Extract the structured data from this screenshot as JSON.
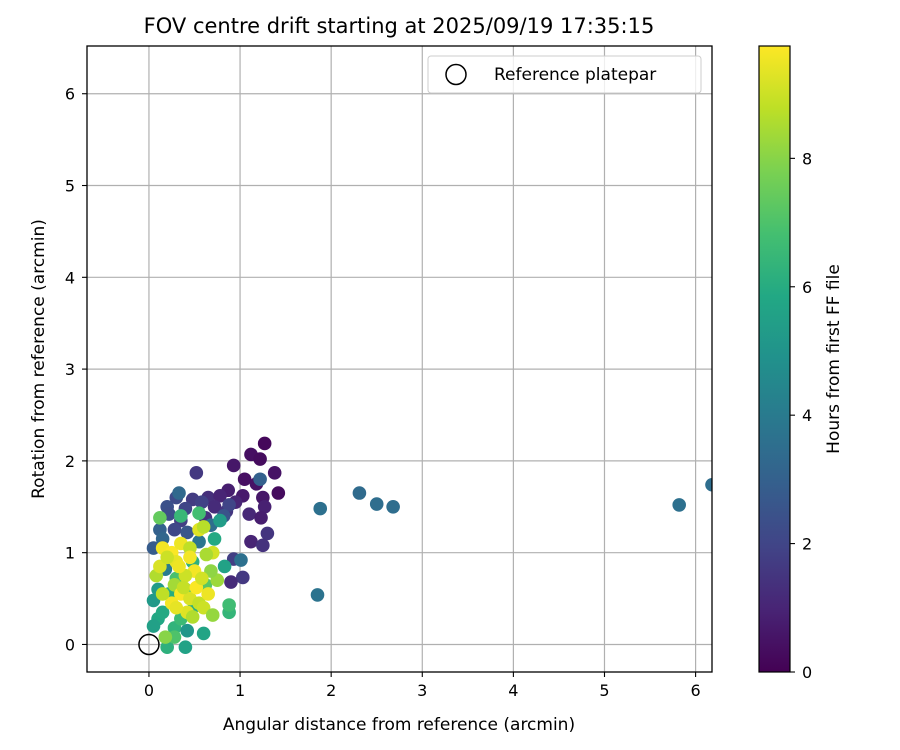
{
  "chart_data": {
    "type": "scatter",
    "title": "FOV centre drift starting at 2025/09/19 17:35:15",
    "xlabel": "Angular distance from reference (arcmin)",
    "ylabel": "Rotation from reference (arcmin)",
    "xlim": [
      -0.68,
      6.18
    ],
    "ylim": [
      -0.3,
      6.52
    ],
    "xticks": [
      "0",
      "1",
      "2",
      "3",
      "4",
      "5",
      "6"
    ],
    "yticks": [
      "0",
      "1",
      "2",
      "3",
      "4",
      "5",
      "6"
    ],
    "grid": true,
    "legend": {
      "position": "top-right",
      "label": "Reference platepar"
    },
    "reference_point": {
      "x": 0,
      "y": 0
    },
    "colorbar": {
      "label": "Hours from first FF file",
      "range": [
        0,
        9.75
      ],
      "ticks": [
        "0",
        "2",
        "4",
        "6",
        "8"
      ],
      "colormap": "viridis"
    },
    "series": [
      {
        "name": "FOV centre drift",
        "points": [
          {
            "x": 1.27,
            "y": 2.19,
            "h": 0.2
          },
          {
            "x": 1.12,
            "y": 2.07,
            "h": 0.4
          },
          {
            "x": 1.22,
            "y": 2.02,
            "h": 0.3
          },
          {
            "x": 1.38,
            "y": 1.87,
            "h": 0.5
          },
          {
            "x": 0.93,
            "y": 1.95,
            "h": 0.6
          },
          {
            "x": 1.05,
            "y": 1.8,
            "h": 0.4
          },
          {
            "x": 1.18,
            "y": 1.75,
            "h": 0.5
          },
          {
            "x": 1.42,
            "y": 1.65,
            "h": 0.3
          },
          {
            "x": 1.25,
            "y": 1.6,
            "h": 0.6
          },
          {
            "x": 1.03,
            "y": 1.62,
            "h": 0.7
          },
          {
            "x": 0.87,
            "y": 1.68,
            "h": 0.8
          },
          {
            "x": 0.95,
            "y": 1.55,
            "h": 1.0
          },
          {
            "x": 1.27,
            "y": 1.5,
            "h": 0.9
          },
          {
            "x": 1.1,
            "y": 1.42,
            "h": 1.1
          },
          {
            "x": 1.23,
            "y": 1.38,
            "h": 0.8
          },
          {
            "x": 1.3,
            "y": 1.21,
            "h": 1.5
          },
          {
            "x": 1.12,
            "y": 1.12,
            "h": 1.0
          },
          {
            "x": 1.25,
            "y": 1.08,
            "h": 1.4
          },
          {
            "x": 0.93,
            "y": 0.93,
            "h": 1.8
          },
          {
            "x": 1.03,
            "y": 0.73,
            "h": 1.6
          },
          {
            "x": 0.9,
            "y": 0.68,
            "h": 1.2
          },
          {
            "x": 0.52,
            "y": 1.87,
            "h": 1.6
          },
          {
            "x": 0.65,
            "y": 1.6,
            "h": 1.3
          },
          {
            "x": 0.78,
            "y": 1.62,
            "h": 1.0
          },
          {
            "x": 0.48,
            "y": 1.58,
            "h": 1.7
          },
          {
            "x": 0.58,
            "y": 1.55,
            "h": 1.9
          },
          {
            "x": 0.72,
            "y": 1.5,
            "h": 1.2
          },
          {
            "x": 0.4,
            "y": 1.48,
            "h": 2.0
          },
          {
            "x": 0.3,
            "y": 1.6,
            "h": 2.2
          },
          {
            "x": 0.2,
            "y": 1.5,
            "h": 2.4
          },
          {
            "x": 0.22,
            "y": 1.42,
            "h": 2.3
          },
          {
            "x": 0.35,
            "y": 1.35,
            "h": 1.8
          },
          {
            "x": 0.62,
            "y": 1.38,
            "h": 1.4
          },
          {
            "x": 0.85,
            "y": 1.45,
            "h": 1.5
          },
          {
            "x": 0.28,
            "y": 1.25,
            "h": 2.1
          },
          {
            "x": 0.42,
            "y": 1.22,
            "h": 2.6
          },
          {
            "x": 0.12,
            "y": 1.25,
            "h": 3.0
          },
          {
            "x": 0.05,
            "y": 1.05,
            "h": 2.8
          },
          {
            "x": 0.15,
            "y": 1.15,
            "h": 3.2
          },
          {
            "x": 0.88,
            "y": 1.52,
            "h": 2.0
          },
          {
            "x": 0.82,
            "y": 1.4,
            "h": 2.5
          },
          {
            "x": 0.68,
            "y": 1.3,
            "h": 3.5
          },
          {
            "x": 1.22,
            "y": 1.8,
            "h": 3.0
          },
          {
            "x": 1.01,
            "y": 0.92,
            "h": 3.6
          },
          {
            "x": 0.33,
            "y": 1.65,
            "h": 3.3
          },
          {
            "x": 0.55,
            "y": 1.12,
            "h": 3.8
          },
          {
            "x": 0.18,
            "y": 0.82,
            "h": 4.0
          },
          {
            "x": 1.88,
            "y": 1.48,
            "h": 3.6
          },
          {
            "x": 2.31,
            "y": 1.65,
            "h": 3.4
          },
          {
            "x": 2.5,
            "y": 1.53,
            "h": 3.5
          },
          {
            "x": 2.68,
            "y": 1.5,
            "h": 3.5
          },
          {
            "x": 1.85,
            "y": 0.54,
            "h": 3.7
          },
          {
            "x": 5.82,
            "y": 1.52,
            "h": 3.6
          },
          {
            "x": 6.18,
            "y": 1.74,
            "h": 3.5
          },
          {
            "x": 0.05,
            "y": 0.48,
            "h": 5.2
          },
          {
            "x": 0.1,
            "y": 0.28,
            "h": 5.8
          },
          {
            "x": 0.05,
            "y": 0.2,
            "h": 5.5
          },
          {
            "x": 0.15,
            "y": 0.35,
            "h": 5.9
          },
          {
            "x": 0.2,
            "y": -0.03,
            "h": 6.2
          },
          {
            "x": 0.4,
            "y": -0.03,
            "h": 5.6
          },
          {
            "x": 0.28,
            "y": 0.18,
            "h": 6.3
          },
          {
            "x": 0.42,
            "y": 0.15,
            "h": 5.1
          },
          {
            "x": 0.35,
            "y": 0.28,
            "h": 6.6
          },
          {
            "x": 0.6,
            "y": 0.12,
            "h": 5.7
          },
          {
            "x": 0.28,
            "y": 0.08,
            "h": 7.0
          },
          {
            "x": 0.5,
            "y": 0.42,
            "h": 6.1
          },
          {
            "x": 0.1,
            "y": 0.6,
            "h": 5.3
          },
          {
            "x": 0.22,
            "y": 0.55,
            "h": 6.0
          },
          {
            "x": 0.88,
            "y": 0.35,
            "h": 6.4
          },
          {
            "x": 0.88,
            "y": 0.43,
            "h": 6.7
          },
          {
            "x": 0.83,
            "y": 0.85,
            "h": 5.6
          },
          {
            "x": 0.78,
            "y": 1.35,
            "h": 5.4
          },
          {
            "x": 0.55,
            "y": 1.43,
            "h": 6.8
          },
          {
            "x": 0.35,
            "y": 1.4,
            "h": 6.5
          },
          {
            "x": 0.12,
            "y": 1.38,
            "h": 7.4
          },
          {
            "x": 0.72,
            "y": 1.15,
            "h": 5.9
          },
          {
            "x": 0.48,
            "y": 0.9,
            "h": 6.2
          },
          {
            "x": 0.3,
            "y": 0.72,
            "h": 6.9
          },
          {
            "x": 0.62,
            "y": 0.65,
            "h": 7.2
          },
          {
            "x": 0.4,
            "y": 0.6,
            "h": 7.1
          },
          {
            "x": 0.18,
            "y": 0.08,
            "h": 8.0
          },
          {
            "x": 0.08,
            "y": 0.75,
            "h": 8.6
          },
          {
            "x": 0.12,
            "y": 0.85,
            "h": 9.2
          },
          {
            "x": 0.15,
            "y": 1.05,
            "h": 9.6
          },
          {
            "x": 0.25,
            "y": 1.0,
            "h": 9.7
          },
          {
            "x": 0.3,
            "y": 0.9,
            "h": 9.4
          },
          {
            "x": 0.2,
            "y": 0.95,
            "h": 9.0
          },
          {
            "x": 0.35,
            "y": 1.1,
            "h": 9.5
          },
          {
            "x": 0.45,
            "y": 1.05,
            "h": 8.8
          },
          {
            "x": 0.55,
            "y": 1.25,
            "h": 9.3
          },
          {
            "x": 0.6,
            "y": 1.28,
            "h": 8.7
          },
          {
            "x": 0.7,
            "y": 1.0,
            "h": 9.1
          },
          {
            "x": 0.63,
            "y": 0.98,
            "h": 8.5
          },
          {
            "x": 0.5,
            "y": 0.8,
            "h": 9.6
          },
          {
            "x": 0.4,
            "y": 0.75,
            "h": 9.0
          },
          {
            "x": 0.28,
            "y": 0.65,
            "h": 8.4
          },
          {
            "x": 0.35,
            "y": 0.55,
            "h": 9.7
          },
          {
            "x": 0.45,
            "y": 0.5,
            "h": 9.2
          },
          {
            "x": 0.55,
            "y": 0.45,
            "h": 8.9
          },
          {
            "x": 0.65,
            "y": 0.55,
            "h": 9.5
          },
          {
            "x": 0.75,
            "y": 0.7,
            "h": 8.3
          },
          {
            "x": 0.6,
            "y": 0.4,
            "h": 9.0
          },
          {
            "x": 0.42,
            "y": 0.35,
            "h": 9.3
          },
          {
            "x": 0.48,
            "y": 0.3,
            "h": 8.6
          },
          {
            "x": 0.7,
            "y": 0.32,
            "h": 8.2
          },
          {
            "x": 0.25,
            "y": 0.45,
            "h": 9.6
          },
          {
            "x": 0.15,
            "y": 0.55,
            "h": 8.8
          },
          {
            "x": 0.3,
            "y": 0.4,
            "h": 9.4
          },
          {
            "x": 0.38,
            "y": 0.62,
            "h": 8.9
          },
          {
            "x": 0.52,
            "y": 0.62,
            "h": 9.7
          },
          {
            "x": 0.68,
            "y": 0.8,
            "h": 8.1
          },
          {
            "x": 0.58,
            "y": 0.72,
            "h": 9.1
          },
          {
            "x": 0.33,
            "y": 0.85,
            "h": 9.5
          },
          {
            "x": 0.45,
            "y": 0.95,
            "h": 9.6
          }
        ]
      }
    ]
  }
}
